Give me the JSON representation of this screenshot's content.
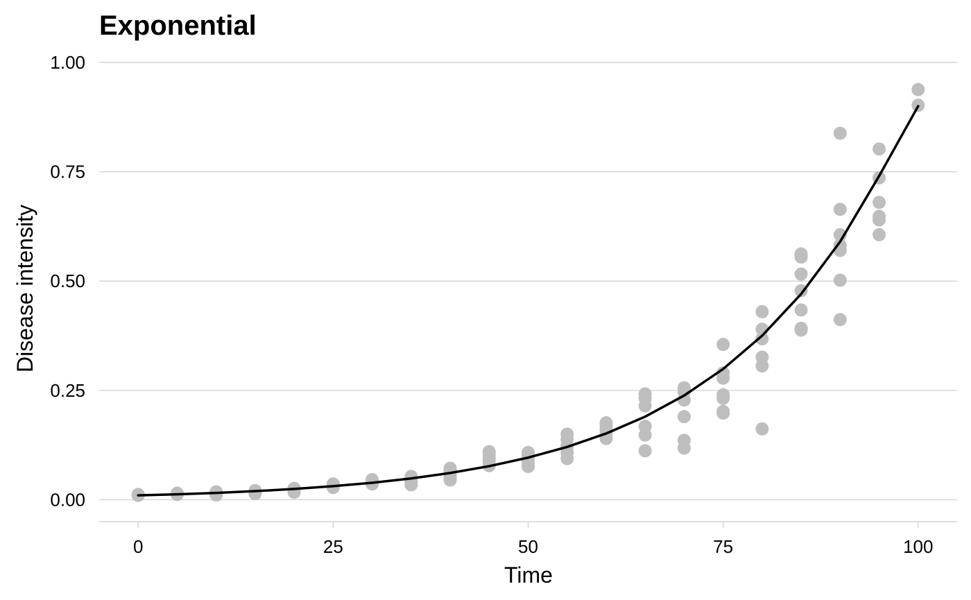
{
  "chart_data": {
    "type": "scatter",
    "title": "Exponential",
    "xlabel": "Time",
    "ylabel": "Disease intensity",
    "xlim": [
      -5,
      105
    ],
    "ylim": [
      -0.05,
      1.0
    ],
    "x_ticks": [
      0,
      25,
      50,
      75,
      100
    ],
    "x_tick_labels": [
      "0",
      "25",
      "50",
      "75",
      "100"
    ],
    "y_ticks": [
      0,
      0.25,
      0.5,
      0.75,
      1.0
    ],
    "y_tick_labels": [
      "0.00",
      "0.25",
      "0.50",
      "0.75",
      "1.00"
    ],
    "grid": true,
    "legend": "none",
    "point_color": "#bebebe",
    "line_color": "#000000",
    "series": [
      {
        "type": "scatter",
        "points": [
          [
            0,
            0.01
          ],
          [
            0,
            0.012
          ],
          [
            0,
            0.011
          ],
          [
            5,
            0.012
          ],
          [
            5,
            0.014
          ],
          [
            5,
            0.013
          ],
          [
            5,
            0.015
          ],
          [
            10,
            0.011
          ],
          [
            10,
            0.016
          ],
          [
            10,
            0.018
          ],
          [
            10,
            0.014
          ],
          [
            15,
            0.014
          ],
          [
            15,
            0.018
          ],
          [
            15,
            0.021
          ],
          [
            15,
            0.017
          ],
          [
            20,
            0.017
          ],
          [
            20,
            0.022
          ],
          [
            20,
            0.026
          ],
          [
            20,
            0.02
          ],
          [
            25,
            0.028
          ],
          [
            25,
            0.033
          ],
          [
            25,
            0.036
          ],
          [
            25,
            0.03
          ],
          [
            30,
            0.036
          ],
          [
            30,
            0.041
          ],
          [
            30,
            0.046
          ],
          [
            30,
            0.039
          ],
          [
            35,
            0.034
          ],
          [
            35,
            0.042
          ],
          [
            35,
            0.05
          ],
          [
            35,
            0.053
          ],
          [
            40,
            0.045
          ],
          [
            40,
            0.052
          ],
          [
            40,
            0.06
          ],
          [
            40,
            0.068
          ],
          [
            40,
            0.072
          ],
          [
            45,
            0.078
          ],
          [
            45,
            0.088
          ],
          [
            45,
            0.095
          ],
          [
            45,
            0.104
          ],
          [
            45,
            0.11
          ],
          [
            50,
            0.076
          ],
          [
            50,
            0.084
          ],
          [
            50,
            0.094
          ],
          [
            50,
            0.102
          ],
          [
            50,
            0.108
          ],
          [
            55,
            0.094
          ],
          [
            55,
            0.108
          ],
          [
            55,
            0.122
          ],
          [
            55,
            0.138
          ],
          [
            55,
            0.15
          ],
          [
            60,
            0.14
          ],
          [
            60,
            0.15
          ],
          [
            60,
            0.16
          ],
          [
            60,
            0.17
          ],
          [
            60,
            0.176
          ],
          [
            65,
            0.112
          ],
          [
            65,
            0.148
          ],
          [
            65,
            0.168
          ],
          [
            65,
            0.215
          ],
          [
            65,
            0.232
          ],
          [
            65,
            0.242
          ],
          [
            70,
            0.118
          ],
          [
            70,
            0.136
          ],
          [
            70,
            0.19
          ],
          [
            70,
            0.228
          ],
          [
            70,
            0.246
          ],
          [
            70,
            0.256
          ],
          [
            75,
            0.198
          ],
          [
            75,
            0.202
          ],
          [
            75,
            0.232
          ],
          [
            75,
            0.24
          ],
          [
            75,
            0.278
          ],
          [
            75,
            0.29
          ],
          [
            75,
            0.355
          ],
          [
            80,
            0.162
          ],
          [
            80,
            0.306
          ],
          [
            80,
            0.326
          ],
          [
            80,
            0.368
          ],
          [
            80,
            0.39
          ],
          [
            80,
            0.43
          ],
          [
            85,
            0.388
          ],
          [
            85,
            0.392
          ],
          [
            85,
            0.434
          ],
          [
            85,
            0.478
          ],
          [
            85,
            0.516
          ],
          [
            85,
            0.555
          ],
          [
            85,
            0.562
          ],
          [
            90,
            0.412
          ],
          [
            90,
            0.502
          ],
          [
            90,
            0.57
          ],
          [
            90,
            0.582
          ],
          [
            90,
            0.606
          ],
          [
            90,
            0.664
          ],
          [
            90,
            0.838
          ],
          [
            95,
            0.606
          ],
          [
            95,
            0.64
          ],
          [
            95,
            0.648
          ],
          [
            95,
            0.68
          ],
          [
            95,
            0.736
          ],
          [
            95,
            0.802
          ],
          [
            100,
            0.902
          ],
          [
            100,
            0.938
          ]
        ]
      },
      {
        "type": "line",
        "x": [
          0,
          5,
          10,
          15,
          20,
          25,
          30,
          35,
          40,
          45,
          50,
          55,
          60,
          65,
          70,
          75,
          80,
          85,
          90,
          95,
          100
        ],
        "y": [
          0.01,
          0.0125,
          0.0157,
          0.0197,
          0.0247,
          0.031,
          0.0389,
          0.0488,
          0.0612,
          0.0768,
          0.0963,
          0.1208,
          0.1515,
          0.19,
          0.2384,
          0.299,
          0.3751,
          0.4705,
          0.5902,
          0.7404,
          0.9
        ]
      }
    ]
  }
}
